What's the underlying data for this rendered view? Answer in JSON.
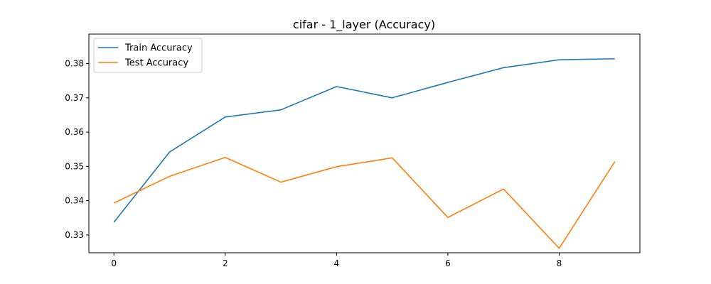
{
  "chart_data": {
    "type": "line",
    "title": "cifar - 1_layer (Accuracy)",
    "xlabel": "",
    "ylabel": "",
    "x": [
      0,
      1,
      2,
      3,
      4,
      5,
      6,
      7,
      8,
      9
    ],
    "xlim": [
      -0.45,
      9.45
    ],
    "ylim": [
      0.3248,
      0.3886
    ],
    "x_ticks": [
      0,
      2,
      4,
      6,
      8
    ],
    "y_ticks": [
      0.33,
      0.34,
      0.35,
      0.36,
      0.37,
      0.38
    ],
    "x_tick_labels": [
      "0",
      "2",
      "4",
      "6",
      "8"
    ],
    "y_tick_labels": [
      "0.33",
      "0.34",
      "0.35",
      "0.36",
      "0.37",
      "0.38"
    ],
    "grid": false,
    "legend_position": "top-left",
    "series": [
      {
        "name": "Train Accuracy",
        "color": "#1f77b4",
        "values": [
          0.3337,
          0.3542,
          0.3644,
          0.3665,
          0.3733,
          0.37,
          0.3745,
          0.3788,
          0.3811,
          0.3814
        ]
      },
      {
        "name": "Test Accuracy",
        "color": "#ff7f0e",
        "values": [
          0.3393,
          0.3471,
          0.3526,
          0.3454,
          0.3499,
          0.3525,
          0.3351,
          0.3434,
          0.3261,
          0.3514
        ]
      }
    ]
  }
}
